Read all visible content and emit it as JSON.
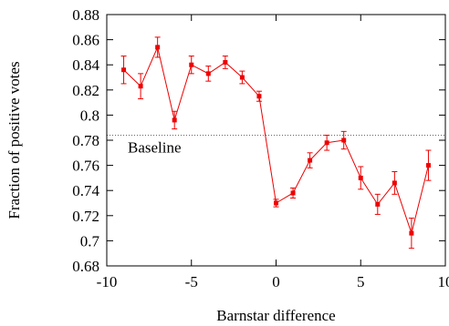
{
  "chart_data": {
    "type": "line",
    "xlabel": "Barnstar difference",
    "ylabel": "Fraction of positive votes",
    "xlim": [
      -10,
      10
    ],
    "ylim": [
      0.68,
      0.88
    ],
    "x_ticks": [
      -10,
      -5,
      0,
      5,
      10
    ],
    "x_tick_labels": [
      "-10",
      "-5",
      "0",
      "5",
      "10"
    ],
    "y_ticks": [
      0.68,
      0.7,
      0.72,
      0.74,
      0.76,
      0.78,
      0.8,
      0.82,
      0.84,
      0.86,
      0.88
    ],
    "y_tick_labels": [
      "0.68",
      "0.7",
      "0.72",
      "0.74",
      "0.76",
      "0.78",
      "0.8",
      "0.82",
      "0.84",
      "0.86",
      "0.88"
    ],
    "grid": false,
    "series": [
      {
        "color": "#ee0000",
        "marker": "square",
        "points": [
          {
            "x": -9,
            "y": 0.836,
            "err": 0.011
          },
          {
            "x": -8,
            "y": 0.823,
            "err": 0.01
          },
          {
            "x": -7,
            "y": 0.854,
            "err": 0.008
          },
          {
            "x": -6,
            "y": 0.796,
            "err": 0.007
          },
          {
            "x": -5,
            "y": 0.84,
            "err": 0.007
          },
          {
            "x": -4,
            "y": 0.833,
            "err": 0.006
          },
          {
            "x": -3,
            "y": 0.842,
            "err": 0.005
          },
          {
            "x": -2,
            "y": 0.83,
            "err": 0.005
          },
          {
            "x": -1,
            "y": 0.815,
            "err": 0.004
          },
          {
            "x": 0,
            "y": 0.73,
            "err": 0.003
          },
          {
            "x": 1,
            "y": 0.738,
            "err": 0.004
          },
          {
            "x": 2,
            "y": 0.764,
            "err": 0.006
          },
          {
            "x": 3,
            "y": 0.778,
            "err": 0.006
          },
          {
            "x": 4,
            "y": 0.78,
            "err": 0.007
          },
          {
            "x": 5,
            "y": 0.75,
            "err": 0.009
          },
          {
            "x": 6,
            "y": 0.729,
            "err": 0.008
          },
          {
            "x": 7,
            "y": 0.746,
            "err": 0.009
          },
          {
            "x": 8,
            "y": 0.706,
            "err": 0.012
          },
          {
            "x": 9,
            "y": 0.76,
            "err": 0.012
          }
        ]
      }
    ],
    "baseline": {
      "label": "Baseline",
      "y": 0.784,
      "color": "#666666",
      "style": "dotted"
    }
  }
}
